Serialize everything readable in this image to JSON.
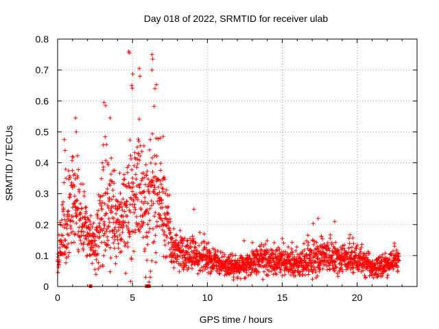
{
  "chart_data": {
    "type": "scatter",
    "title": "Day 018 of 2022, SRMTID for receiver ulab",
    "xlabel": "GPS time / hours",
    "ylabel": "SRMTID / TECUs",
    "xlim": [
      0,
      24
    ],
    "ylim": [
      0,
      0.8
    ],
    "xticks": [
      0,
      5,
      10,
      15,
      20
    ],
    "yticks": [
      0,
      0.1,
      0.2,
      0.3,
      0.4,
      0.5,
      0.6,
      0.7,
      0.8
    ],
    "xtick_labels": [
      "0",
      "5",
      "10",
      "15",
      "20"
    ],
    "ytick_labels": [
      "0",
      "0.1",
      "0.2",
      "0.3",
      "0.4",
      "0.5",
      "0.6",
      "0.7",
      "0.8"
    ],
    "grid": true,
    "marker": "plus",
    "color": "#ff0000",
    "profile_x": [
      0,
      0.5,
      1.0,
      1.5,
      2.0,
      2.5,
      3.0,
      3.5,
      4.0,
      4.5,
      5.0,
      5.5,
      6.0,
      6.5,
      7.0,
      7.5,
      8.0,
      9.0,
      10.0,
      11.0,
      12.0,
      13.0,
      14.0,
      15.0,
      16.0,
      17.0,
      18.0,
      19.0,
      20.0,
      21.0,
      22.0,
      22.8
    ],
    "profile_center": [
      0.08,
      0.2,
      0.26,
      0.22,
      0.16,
      0.13,
      0.25,
      0.26,
      0.22,
      0.25,
      0.3,
      0.32,
      0.22,
      0.27,
      0.28,
      0.15,
      0.12,
      0.1,
      0.09,
      0.07,
      0.06,
      0.08,
      0.08,
      0.08,
      0.07,
      0.09,
      0.1,
      0.09,
      0.09,
      0.06,
      0.07,
      0.09
    ],
    "profile_spread": [
      0.05,
      0.12,
      0.14,
      0.1,
      0.07,
      0.06,
      0.15,
      0.16,
      0.12,
      0.15,
      0.22,
      0.2,
      0.16,
      0.2,
      0.15,
      0.07,
      0.05,
      0.05,
      0.04,
      0.03,
      0.03,
      0.04,
      0.04,
      0.04,
      0.04,
      0.05,
      0.05,
      0.04,
      0.04,
      0.03,
      0.03,
      0.04
    ],
    "peaks": [
      {
        "x": 4.75,
        "y": 0.76
      },
      {
        "x": 4.8,
        "y": 0.755
      },
      {
        "x": 6.3,
        "y": 0.75
      },
      {
        "x": 6.35,
        "y": 0.735
      },
      {
        "x": 6.3,
        "y": 0.7
      },
      {
        "x": 5.45,
        "y": 0.705
      },
      {
        "x": 5.5,
        "y": 0.68
      },
      {
        "x": 4.95,
        "y": 0.65
      },
      {
        "x": 6.5,
        "y": 0.64
      },
      {
        "x": 3.1,
        "y": 0.595
      },
      {
        "x": 3.2,
        "y": 0.585
      },
      {
        "x": 3.5,
        "y": 0.545
      },
      {
        "x": 1.2,
        "y": 0.545
      },
      {
        "x": 1.25,
        "y": 0.5
      },
      {
        "x": 0.45,
        "y": 0.475
      },
      {
        "x": 0.5,
        "y": 0.44
      },
      {
        "x": 6.85,
        "y": 0.48
      },
      {
        "x": 7.05,
        "y": 0.485
      },
      {
        "x": 17.4,
        "y": 0.22
      },
      {
        "x": 18.5,
        "y": 0.21
      },
      {
        "x": 9.1,
        "y": 0.25
      },
      {
        "x": 15.0,
        "y": 0.155
      }
    ],
    "floor_marks": [
      {
        "x": 2.2,
        "y": 0.0
      },
      {
        "x": 5.95,
        "y": 0.0
      },
      {
        "x": 6.1,
        "y": 0.0
      }
    ]
  }
}
